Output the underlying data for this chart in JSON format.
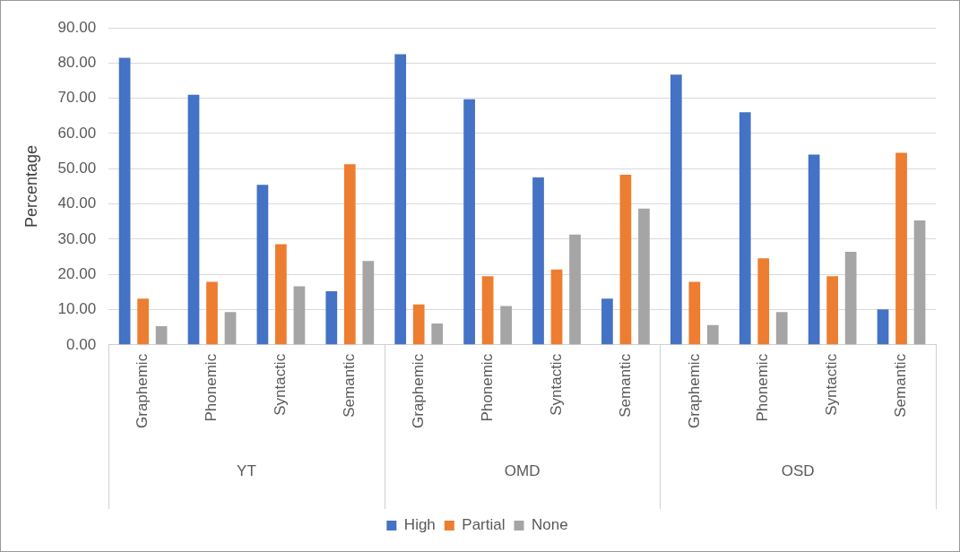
{
  "chart_data": {
    "type": "bar",
    "ylabel": "Percentage",
    "categories": [
      "Graphemic",
      "Phonemic",
      "Syntactic",
      "Semantic",
      "Graphemic",
      "Phonemic",
      "Syntactic",
      "Semantic",
      "Graphemic",
      "Phonemic",
      "Syntactic",
      "Semantic"
    ],
    "annotations": [
      "YT",
      "OMD",
      "OSD"
    ],
    "series": [
      {
        "name": "High",
        "color": "#4472c4",
        "values": [
          81.5,
          71.0,
          45.4,
          15.2,
          82.5,
          69.7,
          47.5,
          13.1,
          76.7,
          66.0,
          54.0,
          10.1
        ]
      },
      {
        "name": "Partial",
        "color": "#ed7d31",
        "values": [
          13.1,
          17.9,
          28.6,
          51.3,
          11.5,
          19.5,
          21.4,
          48.3,
          17.9,
          24.6,
          19.5,
          54.5
        ]
      },
      {
        "name": "None",
        "color": "#a5a5a5",
        "values": [
          5.3,
          9.3,
          16.6,
          23.8,
          6.1,
          11.0,
          31.3,
          38.7,
          5.6,
          9.3,
          26.4,
          35.3
        ]
      }
    ],
    "ylim": [
      0,
      90
    ],
    "yticks": [
      {
        "value": 0,
        "label": "0.00"
      },
      {
        "value": 10,
        "label": "10.00"
      },
      {
        "value": 20,
        "label": "20.00"
      },
      {
        "value": 30,
        "label": "30.00"
      },
      {
        "value": 40,
        "label": "40.00"
      },
      {
        "value": 50,
        "label": "50.00"
      },
      {
        "value": 60,
        "label": "60.00"
      },
      {
        "value": 70,
        "label": "70.00"
      },
      {
        "value": 80,
        "label": "80.00"
      },
      {
        "value": 90,
        "label": "90.00"
      }
    ],
    "grid": "y",
    "legend": "bottom"
  }
}
